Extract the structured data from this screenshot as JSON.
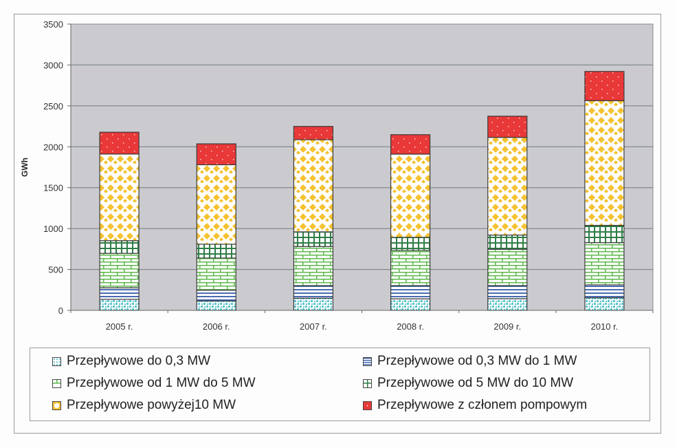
{
  "chart_data": {
    "type": "bar",
    "stacked": true,
    "title": "",
    "xlabel": "",
    "ylabel": "GWh",
    "ylim": [
      0,
      3500
    ],
    "yticks": [
      0,
      500,
      1000,
      1500,
      2000,
      2500,
      3000,
      3500
    ],
    "grid": true,
    "legend_position": "bottom",
    "categories": [
      "2005 r.",
      "2006 r.",
      "2007 r.",
      "2008 r.",
      "2009 r.",
      "2010 r."
    ],
    "series": [
      {
        "name": "Przepływowe do 0,3 MW",
        "color": "#5cc4cc",
        "pattern": "dots",
        "values": [
          135,
          115,
          149,
          141,
          143,
          154
        ]
      },
      {
        "name": "Przepływowe od 0,3 MW do 1 MW",
        "color": "#4a6bb0",
        "pattern": "horizontal-lines",
        "values": [
          141,
          132,
          154,
          162,
          160,
          158
        ]
      },
      {
        "name": "Przepływowe od 1 MW do 5 MW",
        "color": "#5cb84a",
        "pattern": "bricks",
        "values": [
          421,
          393,
          478,
          430,
          444,
          516
        ]
      },
      {
        "name": "Przepływowe od 5 MW do 10 MW",
        "color": "#2e7d46",
        "pattern": "grid",
        "values": [
          155,
          169,
          179,
          160,
          174,
          211
        ]
      },
      {
        "name": "Przepływowe powyżej10 MW",
        "color": "#f5c232",
        "pattern": "diamonds",
        "values": [
          1059,
          971,
          1127,
          1017,
          1194,
          1525
        ]
      },
      {
        "name": "Przepływowe z członem pompowym",
        "color": "#e83838",
        "pattern": "red-dots",
        "values": [
          267,
          256,
          162,
          238,
          259,
          357
        ]
      }
    ]
  },
  "legend": {
    "items": [
      {
        "label": "Przepływowe do 0,3 MW"
      },
      {
        "label": "Przepływowe od 0,3 MW do 1 MW"
      },
      {
        "label": "Przepływowe od 1 MW do 5 MW"
      },
      {
        "label": "Przepływowe od 5 MW do 10 MW"
      },
      {
        "label": "Przepływowe powyżej10 MW"
      },
      {
        "label": "Przepływowe z członem pompowym"
      }
    ]
  },
  "colors": {
    "plot_background": "#cbcbcf",
    "gridline": "#707a7f",
    "bar_outline": "#3a3a3a"
  }
}
